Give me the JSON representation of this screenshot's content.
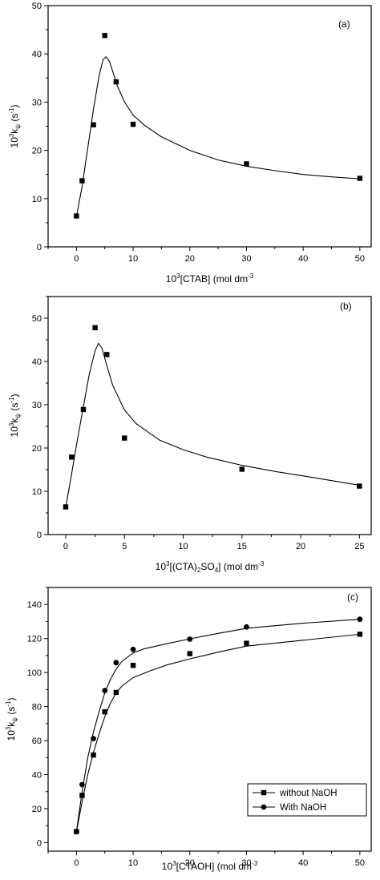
{
  "chart_data": [
    {
      "type": "scatter",
      "panel_label": "(a)",
      "xlabel": "10³[CTAB] (mol dm⁻³)",
      "ylabel": "10³kψ (s⁻¹)",
      "xlim": [
        -5,
        52
      ],
      "ylim": [
        0,
        50
      ],
      "xticks": [
        0,
        10,
        20,
        30,
        40,
        50
      ],
      "yticks": [
        0,
        10,
        20,
        30,
        40,
        50
      ],
      "grid": false,
      "series": [
        {
          "marker": "square",
          "points": [
            [
              0,
              6.4
            ],
            [
              1,
              13.7
            ],
            [
              3,
              25.3
            ],
            [
              5,
              43.8
            ],
            [
              7,
              34.2
            ],
            [
              10,
              25.4
            ],
            [
              30,
              17.2
            ],
            [
              50,
              14.2
            ]
          ],
          "fit": [
            [
              0,
              6.3
            ],
            [
              1,
              12.5
            ],
            [
              2,
              20.5
            ],
            [
              3,
              28.5
            ],
            [
              4,
              35.5
            ],
            [
              4.7,
              38.8
            ],
            [
              5.2,
              39.4
            ],
            [
              5.8,
              38.5
            ],
            [
              6.5,
              36.0
            ],
            [
              7.2,
              33.4
            ],
            [
              8.5,
              30.0
            ],
            [
              10,
              27.3
            ],
            [
              12,
              25.2
            ],
            [
              15,
              22.8
            ],
            [
              20,
              20.0
            ],
            [
              25,
              18.0
            ],
            [
              30,
              16.7
            ],
            [
              35,
              15.8
            ],
            [
              40,
              15.0
            ],
            [
              45,
              14.5
            ],
            [
              50,
              14.1
            ]
          ]
        }
      ]
    },
    {
      "type": "scatter",
      "panel_label": "(b)",
      "xlabel": "10³[(CTA)₂SO₄] (mol dm⁻³)",
      "ylabel": "10³kψ (s⁻¹)",
      "xlim": [
        -1.5,
        26
      ],
      "ylim": [
        0,
        55
      ],
      "xticks": [
        0,
        5,
        10,
        15,
        20,
        25
      ],
      "yticks": [
        0,
        10,
        20,
        30,
        40,
        50
      ],
      "grid": false,
      "series": [
        {
          "marker": "square",
          "points": [
            [
              0,
              6.4
            ],
            [
              0.5,
              17.9
            ],
            [
              1.5,
              28.9
            ],
            [
              2.5,
              47.8
            ],
            [
              3.5,
              41.6
            ],
            [
              5,
              22.3
            ],
            [
              15,
              15.1
            ],
            [
              25,
              11.2
            ]
          ],
          "fit": [
            [
              0,
              6.3
            ],
            [
              0.5,
              14.0
            ],
            [
              1,
              22.0
            ],
            [
              1.5,
              29.5
            ],
            [
              2,
              37.0
            ],
            [
              2.5,
              42.5
            ],
            [
              2.8,
              44.2
            ],
            [
              3.1,
              43.0
            ],
            [
              3.5,
              39.0
            ],
            [
              4,
              34.5
            ],
            [
              5,
              28.8
            ],
            [
              6,
              25.6
            ],
            [
              8,
              21.8
            ],
            [
              10,
              19.6
            ],
            [
              12,
              17.9
            ],
            [
              15,
              16.0
            ],
            [
              18,
              14.5
            ],
            [
              21,
              13.2
            ],
            [
              25,
              11.4
            ]
          ]
        }
      ]
    },
    {
      "type": "scatter",
      "panel_label": "(c)",
      "xlabel": "10³[CTAOH] (mol dm⁻³)",
      "ylabel": "10³kψ (s⁻¹)",
      "xlim": [
        -5,
        52
      ],
      "ylim": [
        -5,
        150
      ],
      "xticks": [
        0,
        10,
        20,
        30,
        40,
        50
      ],
      "yticks": [
        0,
        20,
        40,
        60,
        80,
        100,
        120,
        140
      ],
      "grid": false,
      "legend": "bottom-right",
      "series": [
        {
          "name": "without NaOH",
          "marker": "square",
          "points": [
            [
              0,
              6.5
            ],
            [
              1,
              27.8
            ],
            [
              3,
              51.5
            ],
            [
              5,
              76.9
            ],
            [
              7,
              88.3
            ],
            [
              10,
              104.2
            ],
            [
              20,
              111.1
            ],
            [
              30,
              117.2
            ],
            [
              50,
              122.5
            ]
          ],
          "fit": [
            [
              0,
              6.5
            ],
            [
              1,
              24
            ],
            [
              2,
              40
            ],
            [
              3,
              53
            ],
            [
              4,
              64
            ],
            [
              5,
              74
            ],
            [
              6,
              82
            ],
            [
              7,
              88
            ],
            [
              8,
              92
            ],
            [
              10,
              97
            ],
            [
              13,
              101
            ],
            [
              16,
              104.5
            ],
            [
              20,
              108
            ],
            [
              25,
              112
            ],
            [
              30,
              115.5
            ],
            [
              40,
              119
            ],
            [
              50,
              122.5
            ]
          ]
        },
        {
          "name": "With NaOH",
          "marker": "circle",
          "points": [
            [
              0,
              6.5
            ],
            [
              1,
              34.1
            ],
            [
              3,
              61.2
            ],
            [
              5,
              89.4
            ],
            [
              7,
              105.8
            ],
            [
              10,
              113.6
            ],
            [
              20,
              119.6
            ],
            [
              30,
              126.8
            ],
            [
              50,
              131.3
            ]
          ],
          "fit": [
            [
              0,
              6.5
            ],
            [
              1,
              30
            ],
            [
              2,
              50
            ],
            [
              3,
              65
            ],
            [
              4,
              77
            ],
            [
              5,
              88
            ],
            [
              6,
              96
            ],
            [
              7,
              102
            ],
            [
              8,
              106.5
            ],
            [
              10,
              111.5
            ],
            [
              12,
              114
            ],
            [
              16,
              117
            ],
            [
              20,
              119.8
            ],
            [
              25,
              123
            ],
            [
              30,
              126
            ],
            [
              40,
              129
            ],
            [
              50,
              131.3
            ]
          ]
        }
      ]
    }
  ]
}
